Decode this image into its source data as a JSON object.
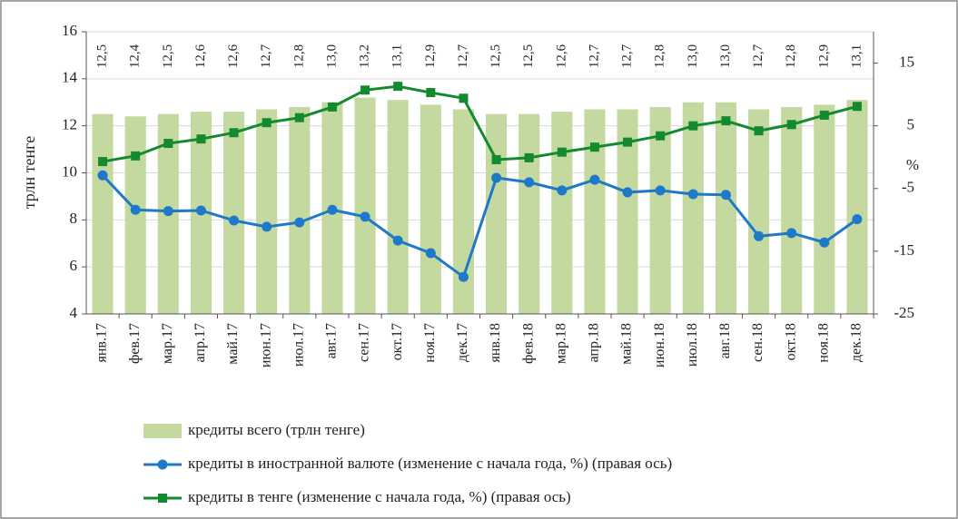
{
  "chart_data": {
    "type": "bar",
    "y_label": "трлн тенге",
    "y2_label": "%",
    "categories": [
      "янв.17",
      "фев.17",
      "мар.17",
      "апр.17",
      "май.17",
      "июн.17",
      "июл.17",
      "авг.17",
      "сен.17",
      "окт.17",
      "ноя.17",
      "дек.17",
      "янв.18",
      "фев.18",
      "мар.18",
      "апр.18",
      "май.18",
      "июн.18",
      "июл.18",
      "авг.18",
      "сен.18",
      "окт.18",
      "ноя.18",
      "дек.18"
    ],
    "ylim": [
      4,
      16
    ],
    "yticks": [
      4,
      6,
      8,
      10,
      12,
      14,
      16
    ],
    "y2lim": [
      -25,
      20
    ],
    "y2ticks": [
      -25,
      -15,
      -5,
      5,
      15
    ],
    "grid": true,
    "legend": "bottom",
    "series": [
      {
        "name": "кредиты всего (трлн тенге)",
        "type": "bar",
        "color": "#c3d9a0",
        "values": [
          12.5,
          12.4,
          12.5,
          12.6,
          12.6,
          12.7,
          12.8,
          13.0,
          13.2,
          13.1,
          12.9,
          12.7,
          12.5,
          12.5,
          12.6,
          12.7,
          12.7,
          12.8,
          13.0,
          13.0,
          12.7,
          12.8,
          12.9,
          13.1
        ],
        "value_labels": [
          "12,5",
          "12,4",
          "12,5",
          "12,6",
          "12,6",
          "12,7",
          "12,8",
          "13,0",
          "13,2",
          "13,1",
          "12,9",
          "12,7",
          "12,5",
          "12,5",
          "12,6",
          "12,7",
          "12,7",
          "12,8",
          "13,0",
          "13,0",
          "12,7",
          "12,8",
          "12,9",
          "13,1"
        ]
      },
      {
        "name": "кредиты в иностранной валюте (изменение с начала года, %) (правая ось)",
        "type": "line",
        "marker": "circle",
        "axis": "y2",
        "color": "#1f78c8",
        "values": [
          -2.9,
          -8.4,
          -8.6,
          -8.5,
          -10.1,
          -11.1,
          -10.4,
          -8.4,
          -9.5,
          -13.3,
          -15.3,
          -19.1,
          -3.3,
          -4.0,
          -5.3,
          -3.6,
          -5.6,
          -5.3,
          -5.9,
          -6.0,
          -12.6,
          -12.1,
          -13.6,
          -9.9
        ]
      },
      {
        "name": "кредиты в тенге (изменение с начала года, %) (правая ось)",
        "type": "line",
        "marker": "square",
        "axis": "y2",
        "color": "#138a2e",
        "values": [
          -0.7,
          0.2,
          2.2,
          2.9,
          3.9,
          5.5,
          6.3,
          8.0,
          10.7,
          11.3,
          10.3,
          9.4,
          -0.4,
          -0.1,
          0.8,
          1.6,
          2.4,
          3.4,
          5.0,
          5.8,
          4.2,
          5.2,
          6.7,
          8.1
        ]
      }
    ]
  }
}
